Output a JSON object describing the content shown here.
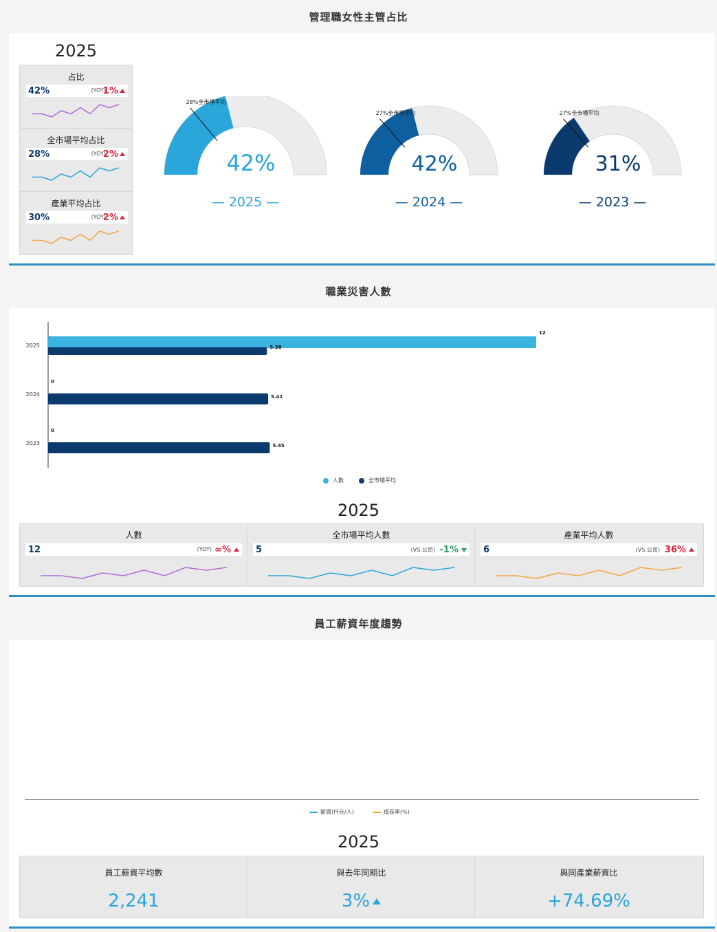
{
  "section1": {
    "title": "管理職女性主管占比",
    "year": "2025",
    "mini_cards": [
      {
        "title": "占比",
        "value": "42%",
        "yoy_label": "(YOY)",
        "change": "1%",
        "direction": "up",
        "spark_color": "#b36ad9",
        "spark_values": [
          3,
          3,
          2,
          4,
          3,
          5,
          3,
          6,
          5,
          6
        ]
      },
      {
        "title": "全市場平均占比",
        "value": "28%",
        "yoy_label": "(YOY)",
        "change": "2%",
        "direction": "up",
        "spark_color": "#2aa6db",
        "spark_values": [
          3,
          3,
          2,
          4,
          3,
          5,
          3,
          6,
          5,
          6
        ]
      },
      {
        "title": "產業平均占比",
        "value": "30%",
        "yoy_label": "(YOY)",
        "change": "2%",
        "direction": "up",
        "spark_color": "#f2a541",
        "spark_values": [
          3,
          3,
          2,
          4,
          3,
          5,
          3,
          6,
          5,
          6
        ]
      }
    ],
    "gauges": [
      {
        "year_label": "— 2025 —",
        "value_label": "42%",
        "value": 0.42,
        "market_label": "28%全市場平均",
        "market": 0.28,
        "color": "#2aa6db"
      },
      {
        "year_label": "— 2024 —",
        "value_label": "42%",
        "value": 0.42,
        "market_label": "27%全市場平均",
        "market": 0.27,
        "color": "#0d5fa0"
      },
      {
        "year_label": "— 2023 —",
        "value_label": "31%",
        "value": 0.31,
        "market_label": "27%全市場平均",
        "market": 0.27,
        "color": "#0b3a6e"
      }
    ]
  },
  "section2": {
    "title": "職業災害人數",
    "year": "2025",
    "chart_data": {
      "type": "bar",
      "orientation": "horizontal",
      "categories": [
        "2025",
        "2024",
        "2023"
      ],
      "series": [
        {
          "name": "人數",
          "values": [
            12,
            0,
            0
          ],
          "labels": [
            "12",
            "0",
            "0"
          ],
          "color": "#3ab3e0"
        },
        {
          "name": "全市場平均",
          "values": [
            5.38,
            5.41,
            5.45
          ],
          "labels": [
            "5.38",
            "5.41",
            "5.45"
          ],
          "color": "#0b3a6e"
        }
      ],
      "xlim": [
        0,
        16.8
      ],
      "legend": "bottom"
    },
    "kpis": [
      {
        "title": "人數",
        "value": "12",
        "cmp_label": "(YOY)",
        "change": "∞%",
        "direction": "up",
        "change_color": "#d7263d",
        "spark_color": "#b36ad9"
      },
      {
        "title": "全市場平均人數",
        "value": "5",
        "cmp_label": "(VS.公司)",
        "change": "-1%",
        "direction": "down",
        "change_color": "#2f9e61",
        "spark_color": "#2aa6db"
      },
      {
        "title": "產業平均人數",
        "value": "6",
        "cmp_label": "(VS.公司)",
        "change": "36%",
        "direction": "up",
        "change_color": "#d7263d",
        "spark_color": "#f2a541"
      }
    ],
    "spark_values": [
      3,
      3,
      2,
      4,
      3,
      5,
      3,
      6,
      5,
      6
    ]
  },
  "section3": {
    "title": "員工薪資年度趨勢",
    "year": "2025",
    "legend": [
      {
        "name": "薪資(仟元/人)",
        "color": "#2aa6db"
      },
      {
        "name": "成長率(%)",
        "color": "#f2a541"
      }
    ],
    "kpis": [
      {
        "title": "員工薪資平均數",
        "value": "2,241"
      },
      {
        "title": "與去年同期比",
        "value": "3%",
        "direction": "up"
      },
      {
        "title": "與同產業薪資比",
        "value": "+74.69%"
      }
    ]
  }
}
